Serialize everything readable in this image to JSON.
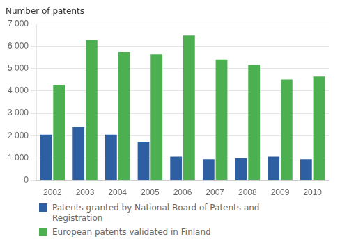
{
  "chart_data": {
    "type": "bar",
    "title": "Number of patents",
    "categories": [
      "2002",
      "2003",
      "2004",
      "2005",
      "2006",
      "2007",
      "2008",
      "2009",
      "2010"
    ],
    "series": [
      {
        "name": "Patents granted by National Board of Patents and\nRegistration",
        "color": "#2E5FA3",
        "values": [
          2050,
          2380,
          2050,
          1730,
          1060,
          940,
          990,
          1060,
          940
        ]
      },
      {
        "name": "European patents validated in Finland",
        "color": "#4CAF50",
        "values": [
          4270,
          6280,
          5740,
          5640,
          6480,
          5400,
          5160,
          4510,
          4640
        ]
      }
    ],
    "ylim": [
      0,
      7000
    ],
    "yticks": [
      0,
      {
        "value": 1000,
        "label": "1 000"
      },
      {
        "value": 2000,
        "label": "2 000"
      },
      {
        "value": 3000,
        "label": "3 000"
      },
      {
        "value": 4000,
        "label": "4 000"
      },
      {
        "value": 5000,
        "label": "5 000"
      },
      {
        "value": 6000,
        "label": "6 000"
      },
      {
        "value": 7000,
        "label": "7 000"
      }
    ],
    "grid": true,
    "legend": "bottom"
  }
}
